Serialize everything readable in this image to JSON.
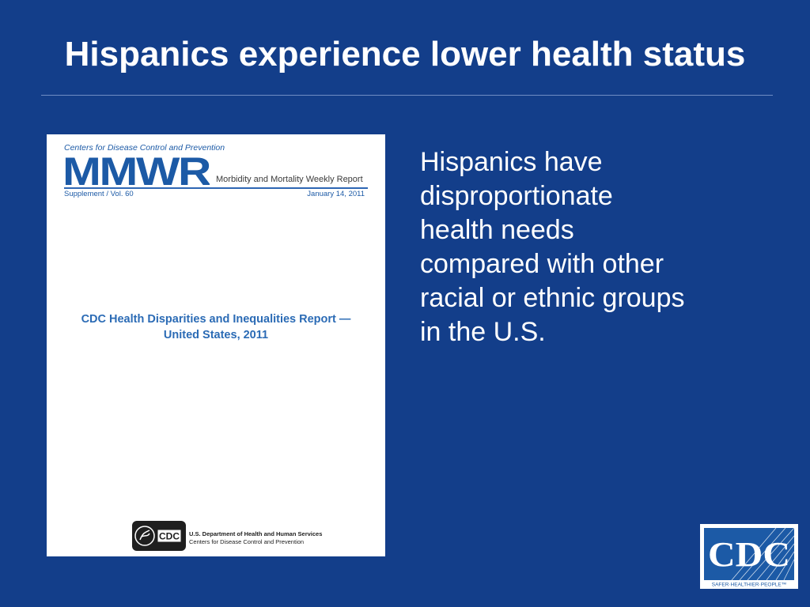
{
  "slide": {
    "title": "Hispanics experience lower health status",
    "body_lines": [
      "Hispanics have",
      "disproportionate",
      "health needs",
      "compared with other",
      "racial or ethnic groups",
      "in the U.S."
    ]
  },
  "cover": {
    "org": "Centers for Disease Control and Prevention",
    "logo_text": "MMWR",
    "subtitle": "Morbidity and Mortality Weekly Report",
    "supplement": "Supplement / Vol. 60",
    "date": "January 14, 2011",
    "report_title_line1": "CDC Health Disparities and Inequalities Report —",
    "report_title_line2": "United States, 2011",
    "hhs_badge": "CDC",
    "hhs_line1": "U.S. Department of Health and Human Services",
    "hhs_line2": "Centers for Disease Control and Prevention"
  },
  "cdc_logo": {
    "text": "CDC",
    "tagline": "SAFER·HEALTHIER·PEOPLE™"
  },
  "colors": {
    "background": "#133e8a",
    "cover_blue": "#2b6bb5"
  }
}
